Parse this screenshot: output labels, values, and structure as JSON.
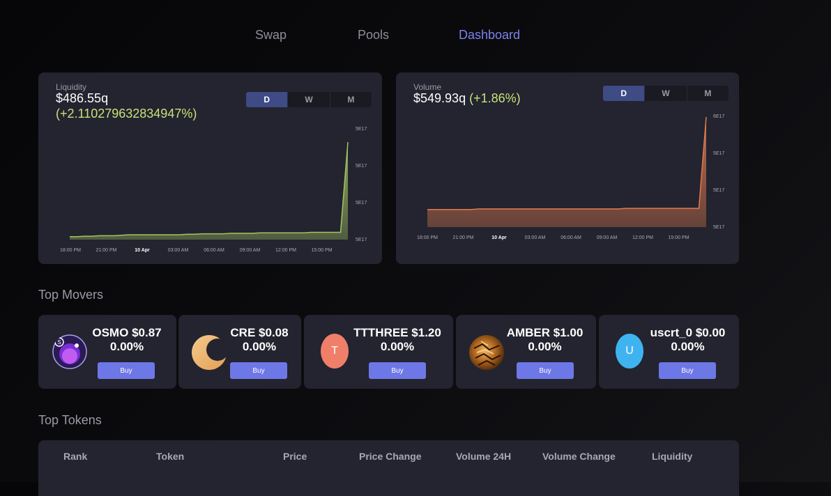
{
  "nav": {
    "swap": "Swap",
    "pools": "Pools",
    "dashboard": "Dashboard",
    "active": "Dashboard"
  },
  "liquidity": {
    "label": "Liquidity",
    "value": "$486.55q",
    "change": "(+2.110279632834947%)",
    "periods": [
      "D",
      "W",
      "M"
    ],
    "selected_period": "D",
    "color": "#a4c561"
  },
  "volume": {
    "label": "Volume",
    "value": "$549.93q",
    "change": "(+1.86%)",
    "periods": [
      "D",
      "W",
      "M"
    ],
    "selected_period": "D",
    "color": "#e07a4f"
  },
  "chart_data": [
    {
      "type": "area",
      "series_name": "Liquidity",
      "x_tick_labels": [
        "18:00 PM",
        "21:00 PM",
        "10 Apr",
        "03:00 AM",
        "06:00 AM",
        "09:00 AM",
        "12:00 PM",
        "15:00 PM"
      ],
      "y_tick_labels": [
        "5E17",
        "5E17",
        "5E17",
        "5E17"
      ],
      "values": [
        0.03,
        0.03,
        0.035,
        0.035,
        0.04,
        0.04,
        0.04,
        0.045,
        0.05,
        0.05,
        0.05,
        0.05,
        0.05,
        0.05,
        0.05,
        0.05,
        0.055,
        0.055,
        0.06,
        0.06,
        0.06,
        0.06,
        0.065,
        0.065,
        0.065,
        0.065,
        0.07,
        0.07,
        0.07,
        0.07,
        0.07,
        0.07,
        0.07,
        0.075,
        0.075,
        0.075,
        0.075,
        0.075,
        1.0
      ],
      "grid": false,
      "legend": "none"
    },
    {
      "type": "area",
      "series_name": "Volume",
      "x_tick_labels": [
        "18:00 PM",
        "21:00 PM",
        "10 Apr",
        "03:00 AM",
        "06:00 AM",
        "09:00 AM",
        "12:00 PM",
        "15:00 PM"
      ],
      "y_tick_labels": [
        "6E17",
        "5E17",
        "5E17",
        "5E17"
      ],
      "values": [
        0.16,
        0.16,
        0.16,
        0.16,
        0.16,
        0.16,
        0.16,
        0.165,
        0.165,
        0.165,
        0.165,
        0.165,
        0.165,
        0.165,
        0.165,
        0.165,
        0.165,
        0.165,
        0.165,
        0.165,
        0.165,
        0.165,
        0.165,
        0.165,
        0.165,
        0.165,
        0.165,
        0.17,
        0.17,
        0.17,
        0.17,
        0.17,
        0.17,
        0.17,
        0.17,
        0.17,
        0.17,
        0.17,
        1.0
      ],
      "grid": false,
      "legend": "none"
    }
  ],
  "top_movers": {
    "title": "Top Movers",
    "buy_label": "Buy",
    "items": [
      {
        "symbol": "OSMO",
        "price": "$0.87",
        "change": "0.00%",
        "icon": "osmo-logo-icon"
      },
      {
        "symbol": "CRE",
        "price": "$0.08",
        "change": "0.00%",
        "icon": "crescent-logo-icon"
      },
      {
        "symbol": "TTTHREE",
        "price": "$1.20",
        "change": "0.00%",
        "icon": "letter-icon",
        "letter": "T",
        "color": "#f07f6a"
      },
      {
        "symbol": "AMBER",
        "price": "$1.00",
        "change": "0.00%",
        "icon": "amber-logo-icon"
      },
      {
        "symbol": "uscrt_0",
        "price": "$0.00",
        "change": "0.00%",
        "icon": "letter-icon",
        "letter": "U",
        "color": "#3fb3f0"
      }
    ]
  },
  "top_tokens": {
    "title": "Top Tokens",
    "columns": [
      "Rank",
      "Token",
      "Price",
      "Price Change",
      "Volume 24H",
      "Volume Change",
      "Liquidity"
    ]
  }
}
